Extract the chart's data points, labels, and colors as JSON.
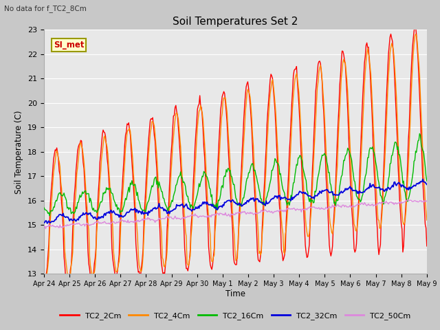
{
  "title": "Soil Temperatures Set 2",
  "subtitle": "No data for f_TC2_8Cm",
  "ylabel": "Soil Temperature (C)",
  "xlabel": "Time",
  "ylim": [
    13.0,
    23.0
  ],
  "yticks": [
    13.0,
    14.0,
    15.0,
    16.0,
    17.0,
    18.0,
    19.0,
    20.0,
    21.0,
    22.0,
    23.0
  ],
  "xtick_labels": [
    "Apr 24",
    "Apr 25",
    "Apr 26",
    "Apr 27",
    "Apr 28",
    "Apr 29",
    "Apr 30",
    "May 1",
    "May 2",
    "May 3",
    "May 4",
    "May 5",
    "May 6",
    "May 7",
    "May 8",
    "May 9"
  ],
  "fig_bg_color": "#c8c8c8",
  "plot_bg_color": "#e8e8e8",
  "grid_color": "#ffffff",
  "legend_label": "SI_met",
  "legend_box_facecolor": "#ffffcc",
  "legend_box_edgecolor": "#999900",
  "legend_text_color": "#cc0000",
  "series_colors": {
    "TC2_2Cm": "#ff0000",
    "TC2_4Cm": "#ff8800",
    "TC2_16Cm": "#00bb00",
    "TC2_32Cm": "#0000dd",
    "TC2_50Cm": "#dd88dd"
  },
  "n_points": 480
}
